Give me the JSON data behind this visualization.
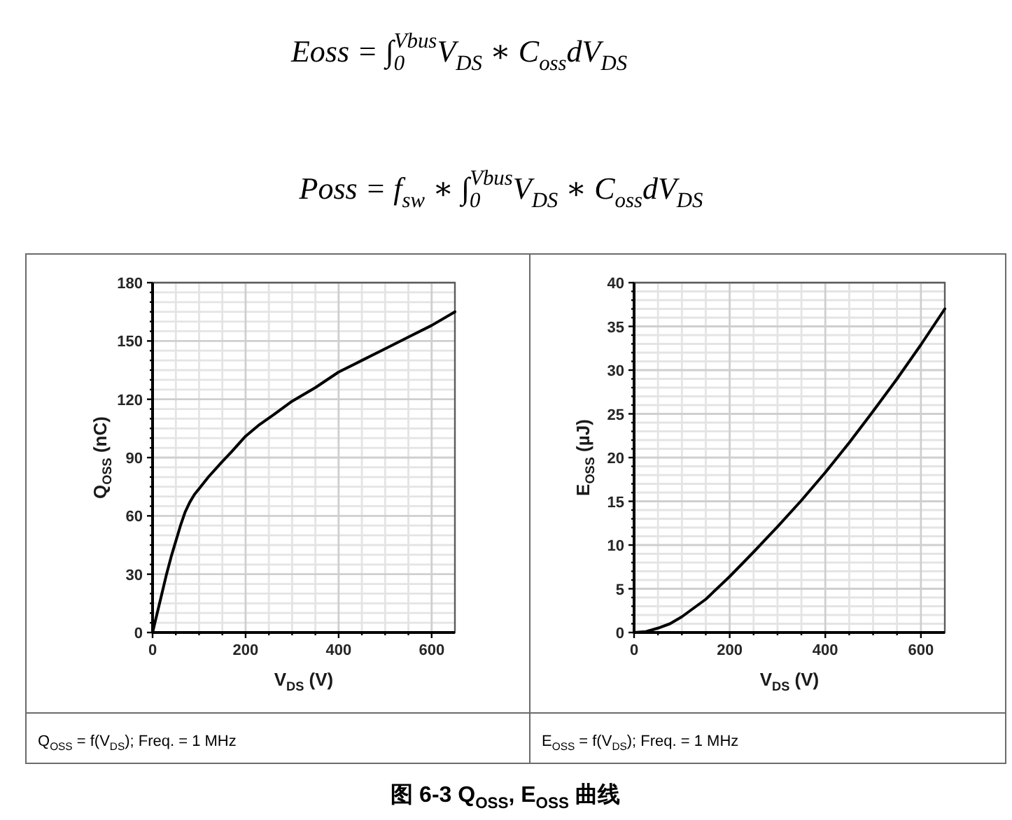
{
  "chart_data": [
    {
      "type": "line",
      "xlabel": "V$_{DS}$ (V)",
      "ylabel": "Q$_{OSS}$ (nC)",
      "x": [
        0,
        10,
        20,
        30,
        40,
        50,
        60,
        70,
        80,
        90,
        100,
        120,
        150,
        170,
        200,
        230,
        260,
        300,
        350,
        400,
        450,
        500,
        550,
        600,
        650
      ],
      "values": [
        0,
        10,
        20,
        30,
        39,
        47,
        55,
        62,
        67,
        71,
        74,
        80,
        88,
        93,
        101,
        107,
        112,
        119,
        126,
        134,
        140,
        146,
        152,
        158,
        165
      ],
      "color": "#000000",
      "xlim": [
        0,
        650
      ],
      "ylim": [
        0,
        180
      ],
      "xticks": [
        0,
        {
          "value": 50,
          "label": null
        },
        {
          "value": 100,
          "label": null
        },
        {
          "value": 150,
          "label": null
        },
        200,
        {
          "value": 250,
          "label": null
        },
        {
          "value": 300,
          "label": null
        },
        {
          "value": 350,
          "label": null
        },
        400,
        {
          "value": 450,
          "label": null
        },
        {
          "value": 500,
          "label": null
        },
        {
          "value": 550,
          "label": null
        },
        600
      ],
      "yticks": [
        0,
        {
          "value": 5,
          "label": null
        },
        {
          "value": 10,
          "label": null
        },
        {
          "value": 15,
          "label": null
        },
        {
          "value": 20,
          "label": null
        },
        {
          "value": 25,
          "label": null
        },
        30,
        {
          "value": 35,
          "label": null
        },
        {
          "value": 40,
          "label": null
        },
        {
          "value": 45,
          "label": null
        },
        {
          "value": 50,
          "label": null
        },
        {
          "value": 55,
          "label": null
        },
        60,
        {
          "value": 65,
          "label": null
        },
        {
          "value": 70,
          "label": null
        },
        {
          "value": 75,
          "label": null
        },
        {
          "value": 80,
          "label": null
        },
        {
          "value": 85,
          "label": null
        },
        90,
        {
          "value": 95,
          "label": null
        },
        {
          "value": 100,
          "label": null
        },
        {
          "value": 105,
          "label": null
        },
        {
          "value": 110,
          "label": null
        },
        {
          "value": 115,
          "label": null
        },
        120,
        {
          "value": 125,
          "label": null
        },
        {
          "value": 130,
          "label": null
        },
        {
          "value": 135,
          "label": null
        },
        {
          "value": 140,
          "label": null
        },
        {
          "value": 145,
          "label": null
        },
        150,
        {
          "value": 155,
          "label": null
        },
        {
          "value": 160,
          "label": null
        },
        {
          "value": 165,
          "label": null
        },
        {
          "value": 170,
          "label": null
        },
        {
          "value": 175,
          "label": null
        },
        180
      ],
      "grid": true,
      "annotations": [
        "Eoss = ∫$_{0}$$^{Vbus}$V$_{DS}$ ∗ C$_{oss}$dV$_{DS}$",
        "Poss = f$_{sw}$ ∗ ∫$_{0}$$^{Vbus}$V$_{DS}$ ∗ C$_{oss}$dV$_{DS}$",
        "Q$_{OSS}$ = f(V$_{DS}$); Freq. = 1 MHz",
        "图 6-3 Q$_{OSS}$, E$_{OSS}$ 曲线"
      ]
    },
    {
      "type": "line",
      "xlabel": "V$_{DS}$ (V)",
      "ylabel": "E$_{OSS}$ (µJ)",
      "x": [
        0,
        25,
        50,
        75,
        100,
        150,
        200,
        250,
        300,
        350,
        400,
        450,
        500,
        550,
        600,
        650
      ],
      "values": [
        0,
        0.1,
        0.5,
        1.0,
        1.8,
        3.8,
        6.4,
        9.2,
        12.1,
        15.1,
        18.3,
        21.7,
        25.3,
        29.0,
        32.9,
        37.0
      ],
      "color": "#000000",
      "xlim": [
        0,
        650
      ],
      "ylim": [
        0,
        40
      ],
      "xticks": [
        0,
        {
          "value": 50,
          "label": null
        },
        {
          "value": 100,
          "label": null
        },
        {
          "value": 150,
          "label": null
        },
        200,
        {
          "value": 250,
          "label": null
        },
        {
          "value": 300,
          "label": null
        },
        {
          "value": 350,
          "label": null
        },
        400,
        {
          "value": 450,
          "label": null
        },
        {
          "value": 500,
          "label": null
        },
        {
          "value": 550,
          "label": null
        },
        600
      ],
      "yticks": [
        0,
        {
          "value": 1,
          "label": null
        },
        {
          "value": 2,
          "label": null
        },
        {
          "value": 3,
          "label": null
        },
        {
          "value": 4,
          "label": null
        },
        5,
        {
          "value": 6,
          "label": null
        },
        {
          "value": 7,
          "label": null
        },
        {
          "value": 8,
          "label": null
        },
        {
          "value": 9,
          "label": null
        },
        10,
        {
          "value": 11,
          "label": null
        },
        {
          "value": 12,
          "label": null
        },
        {
          "value": 13,
          "label": null
        },
        {
          "value": 14,
          "label": null
        },
        15,
        {
          "value": 16,
          "label": null
        },
        {
          "value": 17,
          "label": null
        },
        {
          "value": 18,
          "label": null
        },
        {
          "value": 19,
          "label": null
        },
        20,
        {
          "value": 21,
          "label": null
        },
        {
          "value": 22,
          "label": null
        },
        {
          "value": 23,
          "label": null
        },
        {
          "value": 24,
          "label": null
        },
        25,
        {
          "value": 26,
          "label": null
        },
        {
          "value": 27,
          "label": null
        },
        {
          "value": 28,
          "label": null
        },
        {
          "value": 29,
          "label": null
        },
        30,
        {
          "value": 31,
          "label": null
        },
        {
          "value": 32,
          "label": null
        },
        {
          "value": 33,
          "label": null
        },
        {
          "value": 34,
          "label": null
        },
        35,
        {
          "value": 36,
          "label": null
        },
        {
          "value": 37,
          "label": null
        },
        {
          "value": 38,
          "label": null
        },
        {
          "value": 39,
          "label": null
        },
        40
      ],
      "grid": true,
      "annotations": [
        "E$_{OSS}$ = f(V$_{DS}$); Freq. = 1 MHz"
      ]
    }
  ]
}
